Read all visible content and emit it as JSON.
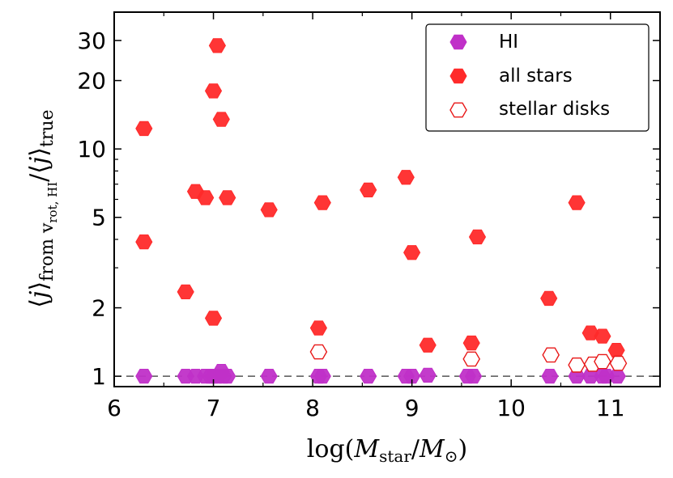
{
  "chart_data": {
    "type": "scatter",
    "xscale": "linear",
    "yscale": "log",
    "xlim": [
      6.0,
      11.5
    ],
    "ylim": [
      0.9,
      40
    ],
    "xticks": [
      6,
      7,
      8,
      9,
      10,
      11
    ],
    "xtick_labels": [
      "6",
      "7",
      "8",
      "9",
      "10",
      "11"
    ],
    "yticks": [
      1,
      2,
      5,
      10,
      20,
      30
    ],
    "ytick_labels": [
      "1",
      "2",
      "5",
      "10",
      "20",
      "30"
    ],
    "reference_line": {
      "y": 1,
      "style": "dashed"
    },
    "xlabel": {
      "prefix": "log(",
      "M1": "M",
      "M1_sub": "star",
      "slash": "/",
      "M2": "M",
      "M2_sub": "⊙",
      "suffix": ")"
    },
    "ylabel": {
      "open1": "⟨",
      "j1": "j",
      "close1": "⟩",
      "sub1_prefix": "from v",
      "sub1_v_sub": "rot, HI",
      "slash": "/",
      "open2": "⟨",
      "j2": "j",
      "close2": "⟩",
      "sub2": "true"
    },
    "legend": {
      "position": "upper-right",
      "entries": [
        {
          "label": "HI",
          "marker": "filled-hexagon",
          "color": "#c030c8"
        },
        {
          "label": "all stars",
          "marker": "filled-hexagon",
          "color": "#ff2a2a"
        },
        {
          "label": "stellar disks",
          "marker": "open-hexagon",
          "color": "#e81818"
        }
      ]
    },
    "series": [
      {
        "name": "HI",
        "color": "#c030c8",
        "marker": "filled-hexagon",
        "points": [
          [
            6.3,
            1.0
          ],
          [
            6.72,
            1.0
          ],
          [
            6.82,
            1.0
          ],
          [
            6.92,
            1.0
          ],
          [
            6.97,
            1.0
          ],
          [
            7.0,
            1.0
          ],
          [
            7.04,
            1.0
          ],
          [
            7.08,
            1.05
          ],
          [
            7.1,
            1.0
          ],
          [
            7.14,
            1.0
          ],
          [
            7.56,
            1.0
          ],
          [
            8.06,
            1.0
          ],
          [
            8.1,
            1.0
          ],
          [
            8.56,
            1.0
          ],
          [
            8.94,
            1.0
          ],
          [
            9.0,
            1.0
          ],
          [
            9.16,
            1.01
          ],
          [
            9.56,
            1.0
          ],
          [
            9.62,
            1.0
          ],
          [
            10.39,
            1.0
          ],
          [
            10.66,
            1.0
          ],
          [
            10.8,
            1.0
          ],
          [
            10.92,
            1.0
          ],
          [
            10.96,
            1.0
          ],
          [
            11.07,
            1.0
          ]
        ]
      },
      {
        "name": "all stars",
        "color": "#ff2a2a",
        "marker": "filled-hexagon",
        "points": [
          [
            6.3,
            12.3
          ],
          [
            6.3,
            3.9
          ],
          [
            6.72,
            2.35
          ],
          [
            6.82,
            6.5
          ],
          [
            6.92,
            6.1
          ],
          [
            7.0,
            18.0
          ],
          [
            7.0,
            1.8
          ],
          [
            7.04,
            28.5
          ],
          [
            7.08,
            13.5
          ],
          [
            7.14,
            6.1
          ],
          [
            7.56,
            5.4
          ],
          [
            8.06,
            1.63
          ],
          [
            8.1,
            5.8
          ],
          [
            8.56,
            6.6
          ],
          [
            8.94,
            7.5
          ],
          [
            9.0,
            3.5
          ],
          [
            9.16,
            1.37
          ],
          [
            9.6,
            1.4
          ],
          [
            9.66,
            4.1
          ],
          [
            10.38,
            2.2
          ],
          [
            10.66,
            5.8
          ],
          [
            10.8,
            1.55
          ],
          [
            10.92,
            1.5
          ],
          [
            11.06,
            1.3
          ]
        ]
      },
      {
        "name": "stellar disks",
        "color": "#e81818",
        "marker": "open-hexagon",
        "points": [
          [
            8.06,
            1.28
          ],
          [
            9.6,
            1.19
          ],
          [
            10.4,
            1.24
          ],
          [
            10.66,
            1.12
          ],
          [
            10.82,
            1.13
          ],
          [
            10.92,
            1.16
          ],
          [
            11.08,
            1.14
          ]
        ]
      }
    ]
  }
}
